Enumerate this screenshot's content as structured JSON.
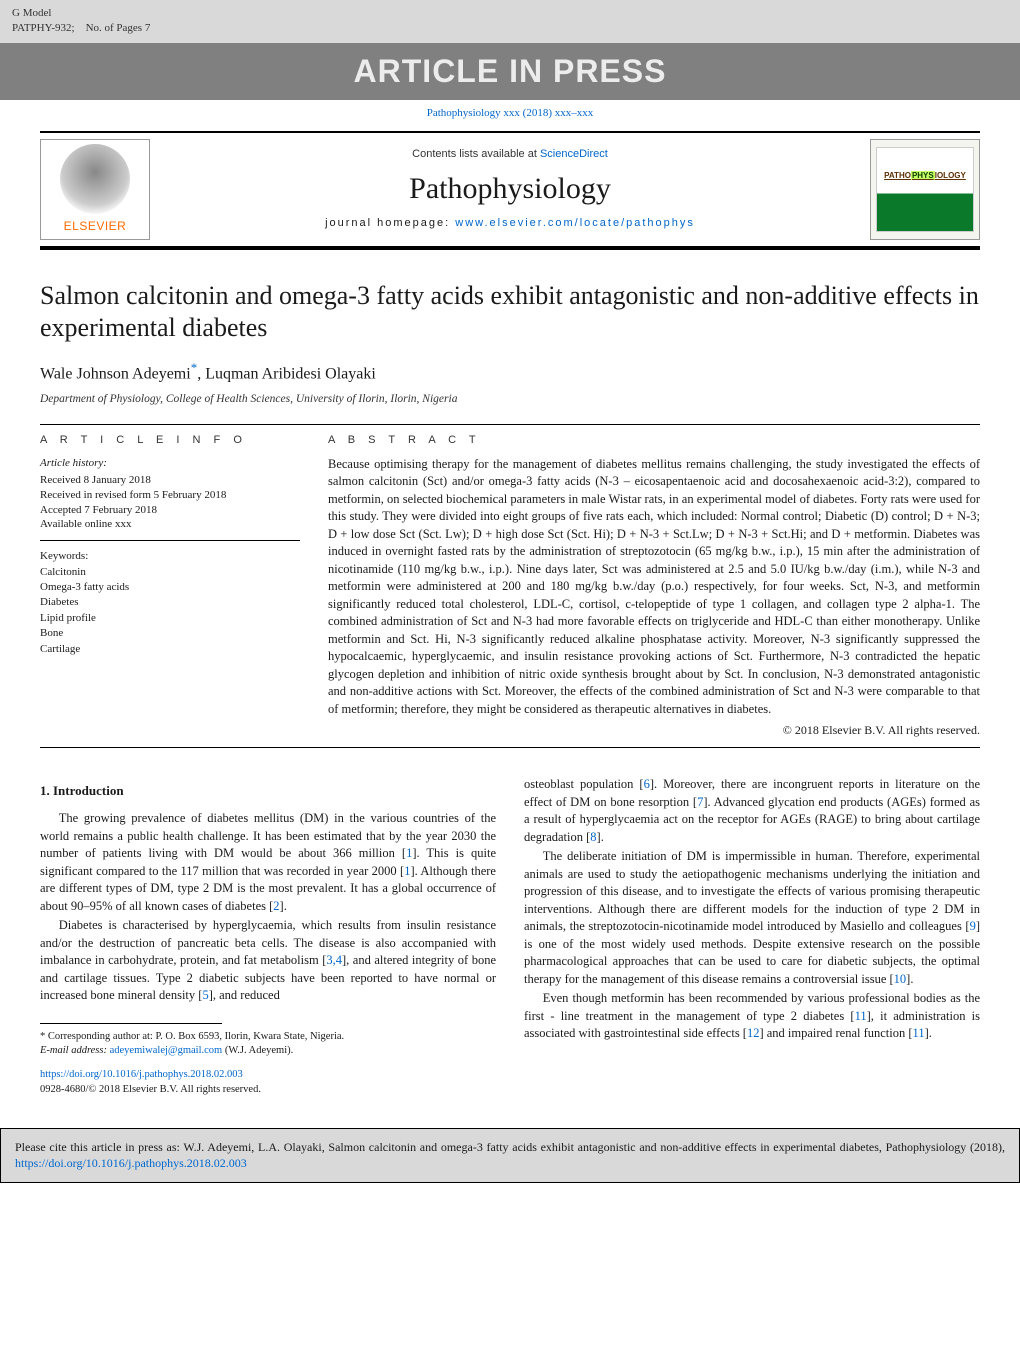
{
  "gmodel": {
    "label": "G Model",
    "code": "PATPHY-932;",
    "pages": "No. of Pages 7"
  },
  "inpress": "ARTICLE IN PRESS",
  "journal_ref": "Pathophysiology xxx (2018) xxx–xxx",
  "masthead": {
    "contents_prefix": "Contents lists available at ",
    "contents_link": "ScienceDirect",
    "journal": "Pathophysiology",
    "homepage_prefix": "journal homepage: ",
    "homepage_link": "www.elsevier.com/locate/pathophys",
    "elsevier": "ELSEVIER",
    "cover_text_a": "PATHO",
    "cover_text_b": "PHYS",
    "cover_text_c": "IOLOGY"
  },
  "title": "Salmon calcitonin and omega-3 fatty acids exhibit antagonistic and non-additive effects in experimental diabetes",
  "authors": "Wale Johnson Adeyemi",
  "authors_corr": "*",
  "authors_rest": ", Luqman Aribidesi Olayaki",
  "affiliation": "Department of Physiology, College of Health Sciences, University of Ilorin, Ilorin, Nigeria",
  "info": {
    "head": "A R T I C L E   I N F O",
    "history_hd": "Article history:",
    "history": [
      "Received 8 January 2018",
      "Received in revised form 5 February 2018",
      "Accepted 7 February 2018",
      "Available online xxx"
    ],
    "keywords_hd": "Keywords:",
    "keywords": [
      "Calcitonin",
      "Omega-3 fatty acids",
      "Diabetes",
      "Lipid profile",
      "Bone",
      "Cartilage"
    ]
  },
  "abstract": {
    "head": "A B S T R A C T",
    "text": "Because optimising therapy for the management of diabetes mellitus remains challenging, the study investigated the effects of salmon calcitonin (Sct) and/or omega-3 fatty acids (N-3 – eicosapentaenoic acid and docosahexaenoic acid-3:2), compared to metformin, on selected biochemical parameters in male Wistar rats, in an experimental model of diabetes. Forty rats were used for this study. They were divided into eight groups of five rats each, which included: Normal control; Diabetic (D) control; D + N-3; D + low dose Sct (Sct. Lw); D + high dose Sct (Sct. Hi); D + N-3 + Sct.Lw; D + N-3 + Sct.Hi; and D + metformin. Diabetes was induced in overnight fasted rats by the administration of streptozotocin (65 mg/kg b.w., i.p.), 15 min after the administration of nicotinamide (110 mg/kg b.w., i.p.). Nine days later, Sct was administered at 2.5 and 5.0 IU/kg b.w./day (i.m.), while N-3 and metformin were administered at 200 and 180 mg/kg b.w./day (p.o.) respectively, for four weeks. Sct, N-3, and metformin significantly reduced total cholesterol, LDL-C, cortisol, c-telopeptide of type 1 collagen, and collagen type 2 alpha-1. The combined administration of Sct and N-3 had more favorable effects on triglyceride and HDL-C than either monotherapy. Unlike metformin and Sct. Hi, N-3 significantly reduced alkaline phosphatase activity. Moreover, N-3 significantly suppressed the hypocalcaemic, hyperglycaemic, and insulin resistance provoking actions of Sct. Furthermore, N-3 contradicted the hepatic glycogen depletion and inhibition of nitric oxide synthesis brought about by Sct. In conclusion, N-3 demonstrated antagonistic and non-additive actions with Sct. Moreover, the effects of the combined administration of Sct and N-3 were comparable to that of metformin; therefore, they might be considered as therapeutic alternatives in diabetes.",
    "copyright": "© 2018 Elsevier B.V. All rights reserved."
  },
  "intro": {
    "head": "1.  Introduction",
    "left": [
      {
        "text": "The growing prevalence of diabetes mellitus (DM) in the various countries of the world remains a public health challenge. It has been estimated that by the year 2030 the number of patients living with DM would be about 366 million [",
        "ref": "1",
        "tail": "]. This is quite significant compared to the 117 million that was recorded in year 2000 [",
        "ref2": "1",
        "tail2": "]. Although there are different types of DM, type 2 DM is the most prevalent. It has a global occurrence of about 90–95% of all known cases of diabetes [",
        "ref3": "2",
        "tail3": "]."
      },
      {
        "text": "Diabetes is characterised by hyperglycaemia, which results from insulin resistance and/or the destruction of pancreatic beta cells. The disease is also accompanied with imbalance in carbohydrate, protein, and fat metabolism [",
        "ref": "3,4",
        "tail": "], and altered integrity of bone and cartilage tissues. Type 2 diabetic subjects have been reported to have normal or increased bone mineral density [",
        "ref2": "5",
        "tail2": "], and reduced"
      }
    ],
    "right": [
      {
        "pre": "osteoblast population [",
        "ref": "6",
        "mid": "]. Moreover, there are incongruent reports in literature on the effect of DM on bone resorption [",
        "ref2": "7",
        "mid2": "]. Advanced glycation end products (AGEs) formed as a result of hyperglycaemia act on the receptor for AGEs (RAGE) to bring about cartilage degradation [",
        "ref3": "8",
        "tail": "]."
      },
      {
        "pre": "The deliberate initiation of DM is impermissible in human. Therefore, experimental animals are used to study the aetiopathogenic mechanisms underlying the initiation and progression of this disease, and to investigate the effects of various promising therapeutic interventions. Although there are different models for the induction of type 2 DM in animals, the streptozotocin-nicotinamide model introduced by Masiello and colleagues [",
        "ref": "9",
        "mid": "] is one of the most widely used methods. Despite extensive research on the possible pharmacological approaches that can be used to care for diabetic subjects, the optimal therapy for the management of this disease remains a controversial issue [",
        "ref2": "10",
        "tail": "]."
      },
      {
        "pre": "Even though metformin has been recommended by various professional bodies as the first - line treatment in the management of type 2 diabetes [",
        "ref": "11",
        "mid": "], it administration is associated with gastrointestinal side effects [",
        "ref2": "12",
        "mid2": "] and impaired renal function [",
        "ref3": "11",
        "tail": "]."
      }
    ]
  },
  "footnote": {
    "corr": "* Corresponding author at: P. O. Box 6593, Ilorin, Kwara State, Nigeria.",
    "email_label": "E-mail address: ",
    "email": "adeyemiwalej@gmail.com",
    "email_tail": " (W.J. Adeyemi)."
  },
  "doi": {
    "link": "https://doi.org/10.1016/j.pathophys.2018.02.003",
    "issn": "0928-4680/© 2018 Elsevier B.V. All rights reserved."
  },
  "cite": {
    "pre": "Please cite this article in press as: W.J. Adeyemi, L.A. Olayaki, Salmon calcitonin and omega-3 fatty acids exhibit antagonistic and non-additive effects in experimental diabetes, Pathophysiology (2018), ",
    "link": "https://doi.org/10.1016/j.pathophys.2018.02.003"
  },
  "colors": {
    "link": "#0066cc",
    "banner_bg": "#808080",
    "banner_fg": "#ececec",
    "gmodel_bg": "#d9d9d9",
    "elsevier": "#ff6a00"
  }
}
